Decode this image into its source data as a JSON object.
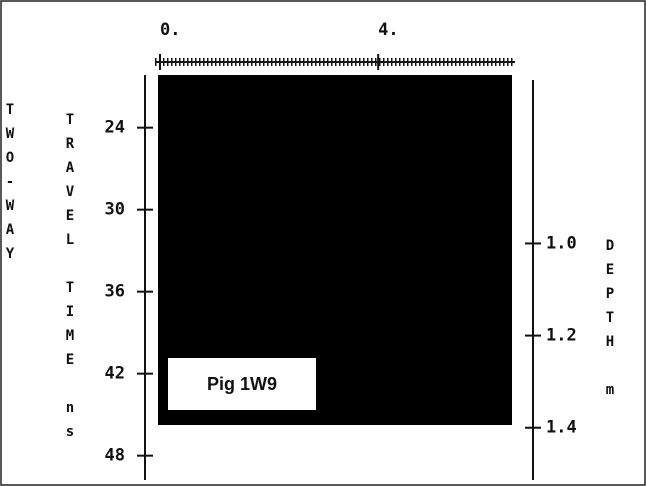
{
  "chart_data": {
    "type": "radargram",
    "ylabel": [
      "TWO-WAY",
      "TRAVEL TIME ns"
    ],
    "y2label": "DEPTH m",
    "annotation": "Pig 1W9",
    "xlim": [
      0,
      6.6
    ],
    "xticks": [
      {
        "value": 0,
        "label": "0."
      },
      {
        "value": 4,
        "label": "4."
      }
    ],
    "ylim": [
      20,
      50
    ],
    "yticks": [
      24,
      30,
      36,
      42,
      48
    ],
    "y2lim": [
      0.63,
      1.52
    ],
    "y2ticks": [
      {
        "value": 1,
        "label": "1.0"
      },
      1.2,
      1.4
    ]
  }
}
